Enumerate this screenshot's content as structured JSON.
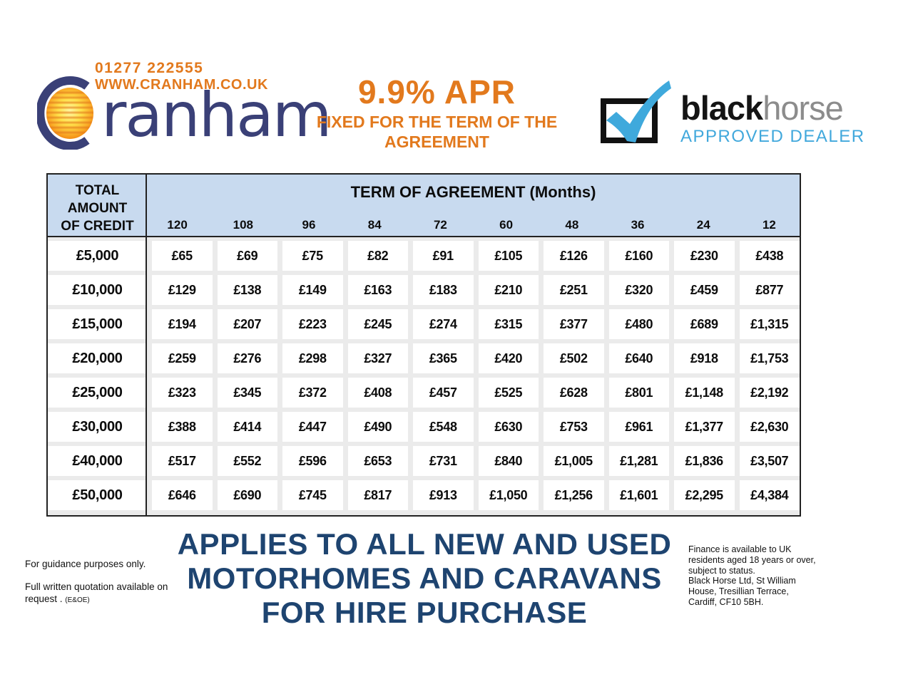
{
  "brand": {
    "phone": "01277 222555",
    "website": "WWW.CRANHAM.CO.UK",
    "logo_text": "ranham",
    "logo_icon": "sun-in-c-logo"
  },
  "apr": {
    "rate": "9.9% APR",
    "sub_line1": "FIXED FOR THE TERM OF THE",
    "sub_line2": "AGREEMENT"
  },
  "blackhorse": {
    "name_bold": "black",
    "name_light": "horse",
    "subtitle": "APPROVED DEALER",
    "logo_icon": "checkbox-tick-logo"
  },
  "table": {
    "credit_header_lines": [
      "TOTAL",
      "AMOUNT",
      "OF CREDIT"
    ],
    "term_header": "TERM OF AGREEMENT (Months)",
    "months": [
      "120",
      "108",
      "96",
      "84",
      "72",
      "60",
      "48",
      "36",
      "24",
      "12"
    ],
    "rows": [
      {
        "credit": "£5,000",
        "payments": [
          "£65",
          "£69",
          "£75",
          "£82",
          "£91",
          "£105",
          "£126",
          "£160",
          "£230",
          "£438"
        ]
      },
      {
        "credit": "£10,000",
        "payments": [
          "£129",
          "£138",
          "£149",
          "£163",
          "£183",
          "£210",
          "£251",
          "£320",
          "£459",
          "£877"
        ]
      },
      {
        "credit": "£15,000",
        "payments": [
          "£194",
          "£207",
          "£223",
          "£245",
          "£274",
          "£315",
          "£377",
          "£480",
          "£689",
          "£1,315"
        ]
      },
      {
        "credit": "£20,000",
        "payments": [
          "£259",
          "£276",
          "£298",
          "£327",
          "£365",
          "£420",
          "£502",
          "£640",
          "£918",
          "£1,753"
        ]
      },
      {
        "credit": "£25,000",
        "payments": [
          "£323",
          "£345",
          "£372",
          "£408",
          "£457",
          "£525",
          "£628",
          "£801",
          "£1,148",
          "£2,192"
        ]
      },
      {
        "credit": "£30,000",
        "payments": [
          "£388",
          "£414",
          "£447",
          "£490",
          "£548",
          "£630",
          "£753",
          "£961",
          "£1,377",
          "£2,630"
        ]
      },
      {
        "credit": "£40,000",
        "payments": [
          "£517",
          "£552",
          "£596",
          "£653",
          "£731",
          "£840",
          "£1,005",
          "£1,281",
          "£1,836",
          "£3,507"
        ]
      },
      {
        "credit": "£50,000",
        "payments": [
          "£646",
          "£690",
          "£745",
          "£817",
          "£913",
          "£1,050",
          "£1,256",
          "£1,601",
          "£2,295",
          "£4,384"
        ]
      }
    ]
  },
  "footer": {
    "left_line1": "For guidance purposes only.",
    "left_line2": "Full written quotation available on request . ",
    "left_eoe": "(E&OE)",
    "headline_lines": [
      "APPLIES TO ALL NEW AND USED",
      "MOTORHOMES AND CARAVANS",
      "FOR HIRE PURCHASE"
    ],
    "right_lines": [
      "Finance is available to UK",
      "residents aged 18 years or over,",
      "subject to status.",
      "Black Horse Ltd, St William",
      "House, Tresillian Terrace,",
      "Cardiff, CF10 5BH."
    ]
  },
  "colors": {
    "orange": "#E2791D",
    "logo_navy": "#3A4077",
    "headline_navy": "#1E4470",
    "header_blue": "#C8DAEF",
    "blackhorse_blue": "#41A8DC",
    "horse_gray": "#8C8C8C"
  }
}
